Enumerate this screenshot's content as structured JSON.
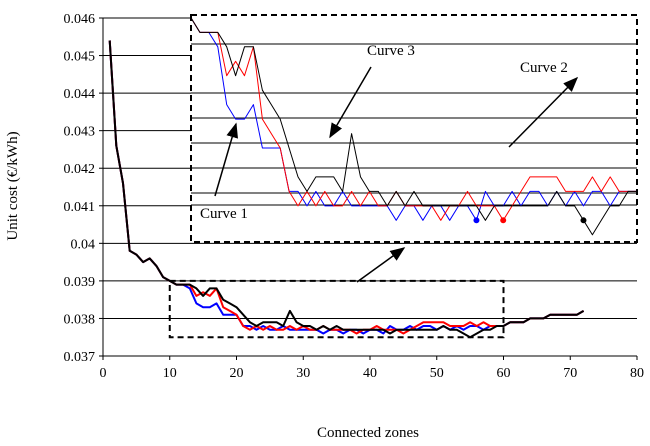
{
  "chart_data": [
    {
      "type": "line",
      "xlabel": "Connected zones",
      "ylabel": "Unit cost (€/kWh)",
      "xlim": [
        0,
        80
      ],
      "ylim": [
        0.037,
        0.046
      ],
      "xticks": [
        "0",
        "10",
        "20",
        "30",
        "40",
        "50",
        "60",
        "70",
        "80"
      ],
      "yticks": [
        "0.037",
        "0.038",
        "0.039",
        "0.04",
        "0.041",
        "0.042",
        "0.043",
        "0.044",
        "0.045",
        "0.046"
      ],
      "grid": "horizontal",
      "series": [
        {
          "color": "#0000ff",
          "x": [
            1,
            2,
            3,
            4,
            5,
            6,
            7,
            8,
            9,
            10,
            11,
            12,
            13,
            14,
            15,
            16,
            17,
            18,
            19,
            20,
            21,
            22,
            23,
            24,
            25,
            26,
            27,
            28,
            29,
            30,
            31,
            32,
            33,
            34,
            35,
            36,
            37,
            38,
            39,
            40,
            41,
            42,
            43,
            44,
            45,
            46,
            47,
            48,
            49,
            50,
            51,
            52,
            53,
            54,
            55,
            56,
            57,
            58,
            59,
            60,
            61,
            62,
            63,
            64,
            65,
            66,
            67,
            68,
            69,
            70,
            71,
            72
          ],
          "y": [
            0.0454,
            0.0426,
            0.0416,
            0.0398,
            0.0397,
            0.0395,
            0.0396,
            0.0394,
            0.0391,
            0.039,
            0.0389,
            0.0389,
            0.0388,
            0.0384,
            0.0383,
            0.0383,
            0.0384,
            0.0381,
            0.0381,
            0.0381,
            0.0378,
            0.0378,
            0.0377,
            0.0378,
            0.0377,
            0.0377,
            0.0378,
            0.0377,
            0.0377,
            0.0377,
            0.0377,
            0.0377,
            0.0376,
            0.0377,
            0.0377,
            0.0376,
            0.0377,
            0.0377,
            0.0376,
            0.0377,
            0.0377,
            0.0376,
            0.0378,
            0.0377,
            0.0377,
            0.0378,
            0.0377,
            0.0378,
            0.0378,
            0.0377,
            0.0378,
            0.0377,
            0.0378,
            0.0377,
            0.0378,
            0.0378,
            0.0377,
            0.0378,
            0.0378,
            0.0378,
            0.0379,
            0.0379,
            0.0379,
            0.038,
            0.038,
            0.038,
            0.0381,
            0.0381,
            0.0381,
            0.0381,
            0.0381,
            0.0382
          ]
        },
        {
          "color": "#ff0000",
          "x": [
            1,
            2,
            3,
            4,
            5,
            6,
            7,
            8,
            9,
            10,
            11,
            12,
            13,
            14,
            15,
            16,
            17,
            18,
            19,
            20,
            21,
            22,
            23,
            24,
            25,
            26,
            27,
            28,
            29,
            30,
            31,
            32,
            33,
            34,
            35,
            36,
            37,
            38,
            39,
            40,
            41,
            42,
            43,
            44,
            45,
            46,
            47,
            48,
            49,
            50,
            51,
            52,
            53,
            54,
            55,
            56,
            57,
            58,
            59,
            60,
            61,
            62,
            63,
            64,
            65,
            66,
            67,
            68,
            69,
            70,
            71,
            72
          ],
          "y": [
            0.0454,
            0.0426,
            0.0416,
            0.0398,
            0.0397,
            0.0395,
            0.0396,
            0.0394,
            0.0391,
            0.039,
            0.0389,
            0.0389,
            0.0389,
            0.0386,
            0.0387,
            0.0386,
            0.0388,
            0.0383,
            0.0382,
            0.0381,
            0.0378,
            0.0377,
            0.0378,
            0.0377,
            0.0378,
            0.0377,
            0.0377,
            0.0378,
            0.0377,
            0.0378,
            0.0377,
            0.0377,
            0.0378,
            0.0377,
            0.0377,
            0.0377,
            0.0377,
            0.0376,
            0.0377,
            0.0377,
            0.0378,
            0.0377,
            0.0377,
            0.0377,
            0.0376,
            0.0377,
            0.0378,
            0.0379,
            0.0379,
            0.0379,
            0.0379,
            0.0378,
            0.0378,
            0.0378,
            0.0379,
            0.0378,
            0.0379,
            0.0378,
            0.0378,
            0.0378,
            0.0379,
            0.0379,
            0.0379,
            0.038,
            0.038,
            0.038,
            0.0381,
            0.0381,
            0.0381,
            0.0381,
            0.0381,
            0.0382
          ]
        },
        {
          "color": "#000000",
          "x": [
            1,
            2,
            3,
            4,
            5,
            6,
            7,
            8,
            9,
            10,
            11,
            12,
            13,
            14,
            15,
            16,
            17,
            18,
            19,
            20,
            21,
            22,
            23,
            24,
            25,
            26,
            27,
            28,
            29,
            30,
            31,
            32,
            33,
            34,
            35,
            36,
            37,
            38,
            39,
            40,
            41,
            42,
            43,
            44,
            45,
            46,
            47,
            48,
            49,
            50,
            51,
            52,
            53,
            54,
            55,
            56,
            57,
            58,
            59,
            60,
            61,
            62,
            63,
            64,
            65,
            66,
            67,
            68,
            69,
            70,
            71,
            72
          ],
          "y": [
            0.0454,
            0.0426,
            0.0416,
            0.0398,
            0.0397,
            0.0395,
            0.0396,
            0.0394,
            0.0391,
            0.039,
            0.0389,
            0.0389,
            0.0389,
            0.0388,
            0.0386,
            0.0388,
            0.0388,
            0.0385,
            0.0384,
            0.0383,
            0.0381,
            0.0379,
            0.0378,
            0.0379,
            0.0379,
            0.0379,
            0.0378,
            0.0382,
            0.0379,
            0.0378,
            0.0378,
            0.0377,
            0.0378,
            0.0377,
            0.0378,
            0.0377,
            0.0377,
            0.0377,
            0.0377,
            0.0377,
            0.0377,
            0.0377,
            0.0376,
            0.0377,
            0.0377,
            0.0377,
            0.0377,
            0.0377,
            0.0377,
            0.0377,
            0.0378,
            0.0377,
            0.0377,
            0.0376,
            0.0375,
            0.0376,
            0.0377,
            0.0377,
            0.0378,
            0.0378,
            0.0379,
            0.0379,
            0.0379,
            0.038,
            0.038,
            0.038,
            0.0381,
            0.0381,
            0.0381,
            0.0381,
            0.0381,
            0.0382
          ]
        }
      ],
      "zoom_window": {
        "xlim": [
          10,
          60
        ],
        "ylim": [
          0.0375,
          0.039
        ]
      }
    },
    {
      "type": "line",
      "inset": true,
      "grid": "horizontal",
      "annotations": [
        "Curve 1",
        "Curve 2",
        "Curve 3"
      ],
      "series": [
        {
          "color": "#0000ff",
          "x": [
            10,
            11,
            12,
            13,
            14,
            15,
            16,
            17,
            18,
            19,
            20,
            21,
            22,
            23,
            24,
            25,
            26,
            27,
            28,
            29,
            30,
            31,
            32,
            33,
            34,
            35,
            36,
            37,
            38,
            39,
            40,
            41,
            42,
            43,
            44,
            45,
            46,
            47,
            48,
            49,
            50,
            51,
            52,
            53,
            54,
            55,
            56,
            57,
            58,
            59,
            60
          ],
          "y": [
            0.039,
            0.0389,
            0.0389,
            0.0388,
            0.0384,
            0.0383,
            0.0383,
            0.0384,
            0.0381,
            0.0381,
            0.0381,
            0.0378,
            0.0378,
            0.0377,
            0.0378,
            0.0377,
            0.0377,
            0.0378,
            0.0377,
            0.0377,
            0.0377,
            0.0377,
            0.0377,
            0.0376,
            0.0377,
            0.0377,
            0.0376,
            0.0377,
            0.0377,
            0.0376,
            0.0377,
            0.0377,
            0.0376,
            0.0378,
            0.0377,
            0.0377,
            0.0378,
            0.0377,
            0.0378,
            0.0378,
            0.0377,
            0.0378,
            0.0377,
            0.0378,
            0.0377,
            0.0378,
            0.0378,
            0.0377,
            0.0378,
            0.0378,
            0.0378
          ],
          "marker_x": 42
        },
        {
          "color": "#ff0000",
          "x": [
            10,
            11,
            12,
            13,
            14,
            15,
            16,
            17,
            18,
            19,
            20,
            21,
            22,
            23,
            24,
            25,
            26,
            27,
            28,
            29,
            30,
            31,
            32,
            33,
            34,
            35,
            36,
            37,
            38,
            39,
            40,
            41,
            42,
            43,
            44,
            45,
            46,
            47,
            48,
            49,
            50,
            51,
            52,
            53,
            54,
            55,
            56,
            57,
            58,
            59,
            60
          ],
          "y": [
            0.039,
            0.0389,
            0.0389,
            0.0389,
            0.0386,
            0.0387,
            0.0386,
            0.0388,
            0.0383,
            0.0382,
            0.0381,
            0.0378,
            0.0377,
            0.0378,
            0.0377,
            0.0378,
            0.0377,
            0.0377,
            0.0378,
            0.0377,
            0.0378,
            0.0377,
            0.0377,
            0.0378,
            0.0377,
            0.0377,
            0.0377,
            0.0377,
            0.0376,
            0.0377,
            0.0377,
            0.0378,
            0.0377,
            0.0377,
            0.0377,
            0.0376,
            0.0377,
            0.0378,
            0.0379,
            0.0379,
            0.0379,
            0.0379,
            0.0378,
            0.0378,
            0.0378,
            0.0379,
            0.0378,
            0.0379,
            0.0378,
            0.0378,
            0.0378
          ],
          "marker_x": 45
        },
        {
          "color": "#000000",
          "x": [
            10,
            11,
            12,
            13,
            14,
            15,
            16,
            17,
            18,
            19,
            20,
            21,
            22,
            23,
            24,
            25,
            26,
            27,
            28,
            29,
            30,
            31,
            32,
            33,
            34,
            35,
            36,
            37,
            38,
            39,
            40,
            41,
            42,
            43,
            44,
            45,
            46,
            47,
            48,
            49,
            50,
            51,
            52,
            53,
            54,
            55,
            56,
            57,
            58,
            59,
            60
          ],
          "y": [
            0.039,
            0.0389,
            0.0389,
            0.0389,
            0.0388,
            0.0386,
            0.0388,
            0.0388,
            0.0385,
            0.0384,
            0.0383,
            0.0381,
            0.0379,
            0.0378,
            0.0379,
            0.0379,
            0.0379,
            0.0378,
            0.0382,
            0.0379,
            0.0378,
            0.0378,
            0.0377,
            0.0378,
            0.0377,
            0.0378,
            0.0377,
            0.0377,
            0.0377,
            0.0377,
            0.0377,
            0.0377,
            0.0377,
            0.0376,
            0.0377,
            0.0377,
            0.0377,
            0.0377,
            0.0377,
            0.0377,
            0.0377,
            0.0378,
            0.0377,
            0.0377,
            0.0376,
            0.0375,
            0.0376,
            0.0377,
            0.0377,
            0.0378,
            0.0378
          ],
          "marker_x": 54
        }
      ]
    }
  ]
}
